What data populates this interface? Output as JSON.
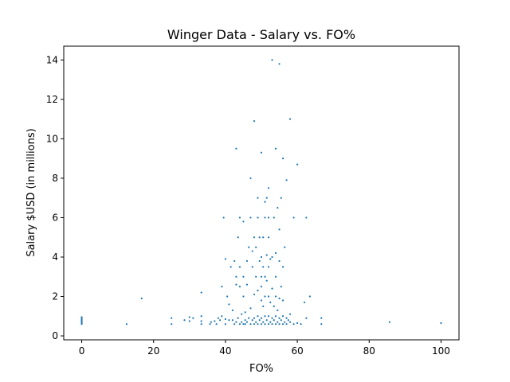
{
  "chart_data": {
    "type": "scatter",
    "title": "Winger Data - Salary vs. FO%",
    "xlabel": "FO%",
    "ylabel": "Salary $USD (in millions)",
    "xlim": [
      -5,
      105
    ],
    "ylim": [
      -0.2,
      14.7
    ],
    "xticks": [
      0,
      20,
      40,
      60,
      80,
      100
    ],
    "yticks": [
      0,
      2,
      4,
      6,
      8,
      10,
      12,
      14
    ],
    "grid": false,
    "marker_color": "#1f77b4",
    "points": [
      [
        0,
        0.6
      ],
      [
        0,
        0.65
      ],
      [
        0,
        0.7
      ],
      [
        0,
        0.75
      ],
      [
        0,
        0.8
      ],
      [
        0,
        0.85
      ],
      [
        0,
        0.9
      ],
      [
        0,
        0.95
      ],
      [
        12.5,
        0.6
      ],
      [
        16.7,
        1.9
      ],
      [
        25,
        0.6
      ],
      [
        25,
        0.9
      ],
      [
        28.6,
        0.8
      ],
      [
        30,
        0.75
      ],
      [
        30,
        0.95
      ],
      [
        31,
        0.9
      ],
      [
        33.3,
        0.6
      ],
      [
        33.3,
        0.75
      ],
      [
        33.3,
        1.0
      ],
      [
        33.3,
        2.2
      ],
      [
        35.7,
        0.6
      ],
      [
        36,
        0.7
      ],
      [
        37,
        0.75
      ],
      [
        37.5,
        0.6
      ],
      [
        38,
        0.9
      ],
      [
        38.5,
        0.8
      ],
      [
        39,
        1.0
      ],
      [
        39,
        2.5
      ],
      [
        39.5,
        6.0
      ],
      [
        40,
        0.6
      ],
      [
        40,
        0.85
      ],
      [
        40,
        3.9
      ],
      [
        40.5,
        2.0
      ],
      [
        41,
        0.8
      ],
      [
        41,
        1.6
      ],
      [
        41.5,
        3.5
      ],
      [
        42,
        0.8
      ],
      [
        42,
        1.3
      ],
      [
        42.5,
        0.6
      ],
      [
        42.5,
        3.8
      ],
      [
        43,
        0.7
      ],
      [
        43,
        2.6
      ],
      [
        43,
        3.0
      ],
      [
        43,
        9.5
      ],
      [
        43.5,
        0.9
      ],
      [
        43.5,
        5.0
      ],
      [
        44,
        0.6
      ],
      [
        44,
        2.5
      ],
      [
        44,
        3.5
      ],
      [
        44,
        6.0
      ],
      [
        44.5,
        0.7
      ],
      [
        44.5,
        1.1
      ],
      [
        45,
        0.6
      ],
      [
        45,
        2.0
      ],
      [
        45,
        3.0
      ],
      [
        45,
        5.8
      ],
      [
        45.5,
        0.8
      ],
      [
        45.5,
        0.6
      ],
      [
        45.5,
        1.2
      ],
      [
        46,
        0.7
      ],
      [
        46,
        2.6
      ],
      [
        46,
        3.8
      ],
      [
        46.5,
        0.9
      ],
      [
        46.5,
        4.5
      ],
      [
        47,
        0.6
      ],
      [
        47,
        1.4
      ],
      [
        47,
        6.0
      ],
      [
        47,
        8.0
      ],
      [
        47.5,
        0.8
      ],
      [
        47.5,
        3.5
      ],
      [
        47.5,
        4.3
      ],
      [
        48,
        0.6
      ],
      [
        48,
        0.9
      ],
      [
        48,
        2.1
      ],
      [
        48,
        5.0
      ],
      [
        48,
        10.9
      ],
      [
        48.5,
        0.7
      ],
      [
        48.5,
        3.0
      ],
      [
        48.5,
        4.5
      ],
      [
        49,
        0.6
      ],
      [
        49,
        1.0
      ],
      [
        49,
        2.3
      ],
      [
        49,
        6.0
      ],
      [
        49,
        7.0
      ],
      [
        49.5,
        0.8
      ],
      [
        49.5,
        3.8
      ],
      [
        49.5,
        5.0
      ],
      [
        50,
        0.6
      ],
      [
        50,
        0.9
      ],
      [
        50,
        1.8
      ],
      [
        50,
        2.5
      ],
      [
        50,
        3.0
      ],
      [
        50,
        4.0
      ],
      [
        50,
        9.3
      ],
      [
        50.5,
        0.7
      ],
      [
        50.5,
        1.5
      ],
      [
        50.5,
        3.5
      ],
      [
        50.5,
        5.0
      ],
      [
        51,
        0.6
      ],
      [
        51,
        1.0
      ],
      [
        51,
        2.0
      ],
      [
        51,
        3.0
      ],
      [
        51,
        6.0
      ],
      [
        51,
        6.8
      ],
      [
        51.5,
        0.8
      ],
      [
        51.5,
        2.8
      ],
      [
        51.5,
        4.1
      ],
      [
        51.5,
        7.0
      ],
      [
        52,
        0.6
      ],
      [
        52,
        1.0
      ],
      [
        52,
        2.0
      ],
      [
        52,
        3.5
      ],
      [
        52,
        5.0
      ],
      [
        52,
        6.0
      ],
      [
        52,
        7.5
      ],
      [
        52.5,
        0.7
      ],
      [
        52.5,
        1.7
      ],
      [
        52.5,
        3.9
      ],
      [
        53,
        0.6
      ],
      [
        53,
        0.9
      ],
      [
        53,
        2.4
      ],
      [
        53,
        4.0
      ],
      [
        53,
        14.0
      ],
      [
        53.5,
        0.8
      ],
      [
        53.5,
        1.5
      ],
      [
        53.5,
        6.0
      ],
      [
        54,
        0.6
      ],
      [
        54,
        1.0
      ],
      [
        54,
        2.0
      ],
      [
        54,
        3.0
      ],
      [
        54,
        4.2
      ],
      [
        54,
        9.5
      ],
      [
        54.5,
        0.7
      ],
      [
        54.5,
        1.3
      ],
      [
        54.5,
        6.5
      ],
      [
        55,
        0.6
      ],
      [
        55,
        0.9
      ],
      [
        55,
        1.9
      ],
      [
        55,
        3.8
      ],
      [
        55,
        5.4
      ],
      [
        55,
        13.8
      ],
      [
        55.5,
        0.8
      ],
      [
        55.5,
        2.5
      ],
      [
        55.5,
        7.0
      ],
      [
        56,
        0.6
      ],
      [
        56,
        1.0
      ],
      [
        56,
        1.8
      ],
      [
        56,
        3.5
      ],
      [
        56,
        9.0
      ],
      [
        56.5,
        0.7
      ],
      [
        56.5,
        4.5
      ],
      [
        57,
        0.6
      ],
      [
        57,
        0.9
      ],
      [
        57,
        7.9
      ],
      [
        57.5,
        0.8
      ],
      [
        58,
        0.7
      ],
      [
        58,
        1.1
      ],
      [
        58,
        11.0
      ],
      [
        59,
        0.6
      ],
      [
        59,
        6.0
      ],
      [
        60,
        0.65
      ],
      [
        60,
        8.7
      ],
      [
        61,
        0.6
      ],
      [
        62,
        1.7
      ],
      [
        62.5,
        0.9
      ],
      [
        62.5,
        6.0
      ],
      [
        63.5,
        2.0
      ],
      [
        66.7,
        0.6
      ],
      [
        66.7,
        0.9
      ],
      [
        85.7,
        0.7
      ],
      [
        100,
        0.65
      ]
    ]
  }
}
